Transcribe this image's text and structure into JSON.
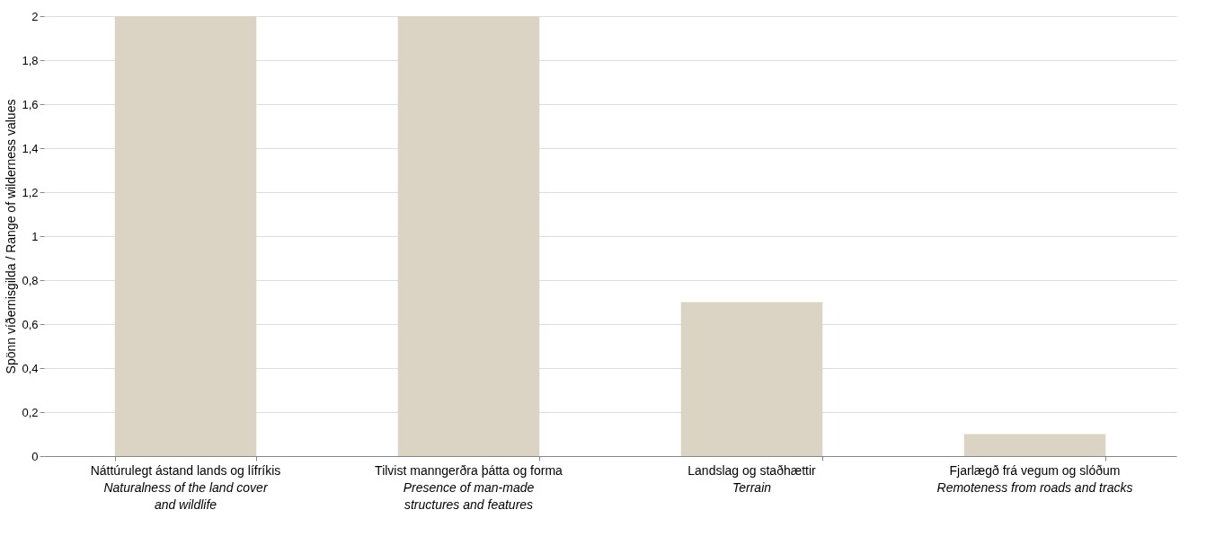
{
  "chart_data": {
    "type": "bar",
    "ylabel": "Spönn víðernisgilda / Range of wilderness values",
    "categories": [
      "Náttúrulegt ástand lands og lífríkis\nNaturalness of the land cover\nand wildlife",
      "Tilvist manngerðra þátta og forma\nPresence of man-made\nstructures and features",
      "Landslag og staðhættir\nTerrain",
      "Fjarlægð frá vegum og slóðum\nRemoteness from roads and tracks"
    ],
    "values": [
      2,
      2,
      0.7,
      0.1
    ],
    "color": "#dbd4c4",
    "ylim": [
      0,
      2
    ],
    "yticks": [
      0,
      {
        "value": 0.2,
        "label": "0,2"
      },
      {
        "value": 0.4,
        "label": "0,4"
      },
      {
        "value": 0.6,
        "label": "0,6"
      },
      {
        "value": 0.8,
        "label": "0,8"
      },
      1,
      {
        "value": 1.2,
        "label": "1,2"
      },
      {
        "value": 1.4,
        "label": "1,4"
      },
      {
        "value": 1.6,
        "label": "1,6"
      },
      {
        "value": 1.8,
        "label": "1,8"
      },
      2
    ],
    "grid": "y"
  }
}
